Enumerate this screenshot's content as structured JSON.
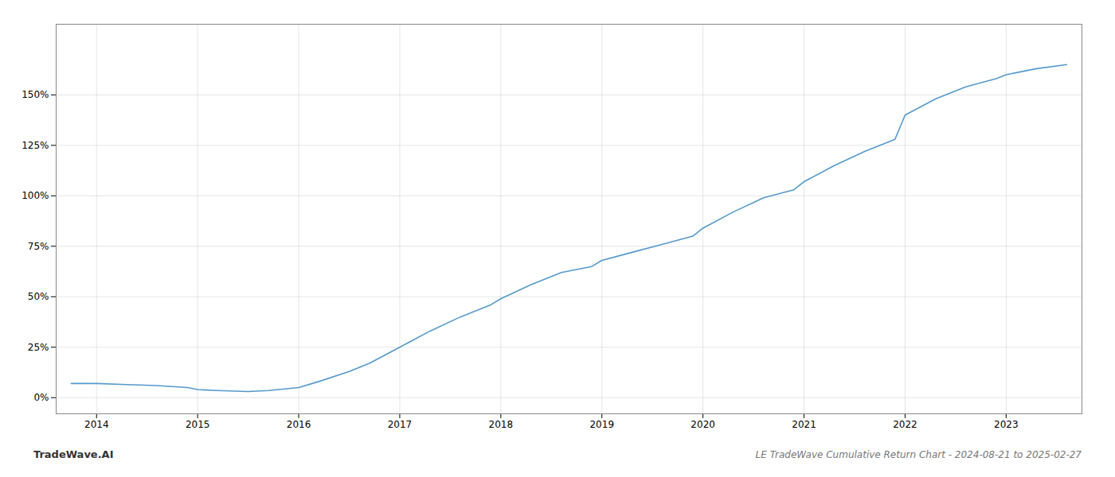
{
  "chart_data": {
    "type": "line",
    "title": "LE TradeWave Cumulative Return Chart - 2024-08-21 to 2025-02-27",
    "annotations": [
      "TradeWave.AI"
    ],
    "x": [
      2013.75,
      2014.0,
      2014.3,
      2014.6,
      2014.9,
      2015.0,
      2015.2,
      2015.5,
      2015.7,
      2016.0,
      2016.2,
      2016.5,
      2016.7,
      2017.0,
      2017.3,
      2017.6,
      2017.9,
      2018.0,
      2018.3,
      2018.6,
      2018.9,
      2019.0,
      2019.3,
      2019.6,
      2019.9,
      2020.0,
      2020.3,
      2020.6,
      2020.9,
      2021.0,
      2021.3,
      2021.6,
      2021.9,
      2022.0,
      2022.3,
      2022.6,
      2022.9,
      2023.0,
      2023.3,
      2023.6
    ],
    "values": [
      7,
      7,
      6.5,
      6,
      5,
      4,
      3.5,
      3,
      3.5,
      5,
      8,
      13,
      17,
      25,
      33,
      40,
      46,
      49,
      56,
      62,
      65,
      68,
      72,
      76,
      80,
      84,
      92,
      99,
      103,
      107,
      115,
      122,
      128,
      140,
      148,
      154,
      158,
      160,
      163,
      165
    ],
    "color": "#5599cc",
    "xlim": [
      2013.6,
      2023.75
    ],
    "xticks": [
      2014,
      2015,
      2016,
      2017,
      2018,
      2019,
      2020,
      2021,
      2022,
      2023
    ],
    "ylim": [
      -8,
      185
    ],
    "yticks": [
      {
        "value": 0,
        "label": "0%"
      },
      {
        "value": 25,
        "label": "25%"
      },
      {
        "value": 50,
        "label": "50%"
      },
      {
        "value": 75,
        "label": "75%"
      },
      {
        "value": 100,
        "label": "100%"
      },
      {
        "value": 125,
        "label": "125%"
      },
      {
        "value": 150,
        "label": "150%"
      }
    ],
    "grid": true
  }
}
